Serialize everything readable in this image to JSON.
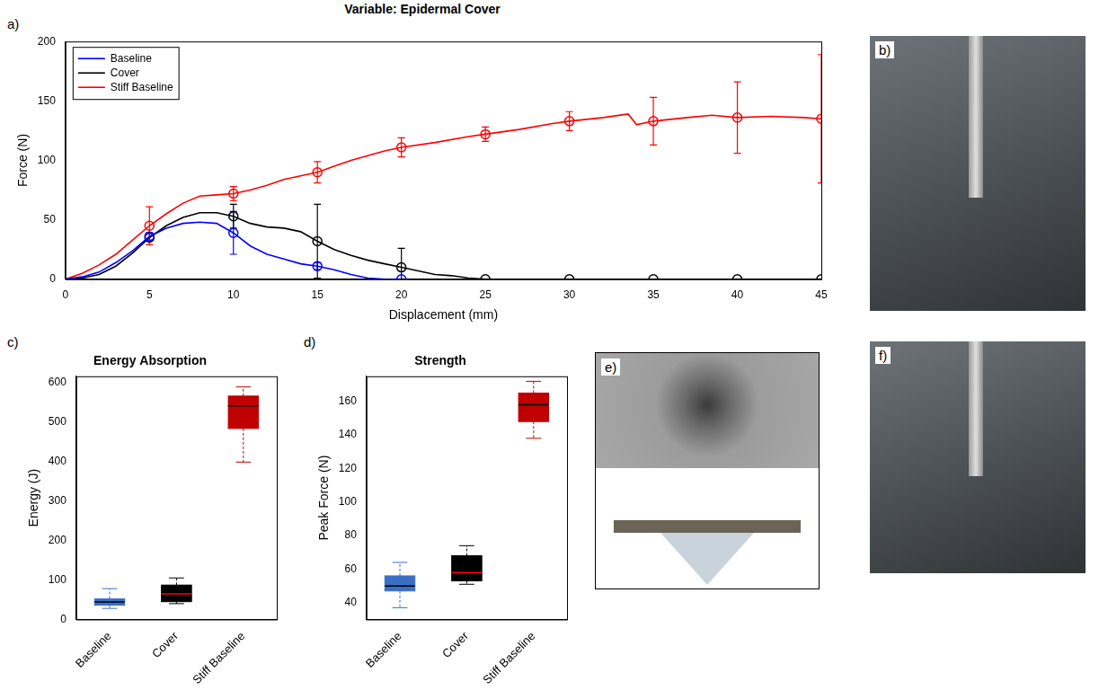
{
  "title": "Variable: Epidermal Cover",
  "chart_data": [
    {
      "panel": "a)",
      "type": "line",
      "x_label": "Displacement (mm)",
      "y_label": "Force (N)",
      "xlim": [
        0,
        45
      ],
      "xticks": [
        0,
        5,
        10,
        15,
        20,
        25,
        30,
        35,
        40,
        45
      ],
      "ylim": [
        0,
        200
      ],
      "yticks": [
        0,
        50,
        100,
        150,
        200
      ],
      "grid": false,
      "legend": "upper left",
      "series": [
        {
          "name": "Baseline",
          "color": "#0000ff",
          "marker": "circle",
          "x": [
            0,
            1,
            2,
            3,
            4,
            5,
            6,
            7,
            8,
            9,
            10,
            11,
            12,
            13,
            14,
            15,
            16,
            17,
            18,
            19,
            20
          ],
          "values": [
            0,
            2,
            6,
            14,
            24,
            36,
            43,
            47,
            48,
            47,
            39,
            28,
            21,
            17,
            13,
            11,
            8,
            4,
            1,
            0,
            0
          ],
          "error_bars": {
            "x": [
              5,
              10,
              15,
              20
            ],
            "y": [
              36,
              39,
              11,
              0
            ],
            "err": [
              3,
              18,
              3,
              0
            ]
          }
        },
        {
          "name": "Cover",
          "color": "#000000",
          "marker": "circle",
          "x": [
            0,
            1,
            2,
            3,
            4,
            5,
            6,
            7,
            8,
            9,
            10,
            11,
            12,
            13,
            14,
            15,
            16,
            17,
            18,
            19,
            20,
            21,
            22,
            23,
            24,
            25,
            30,
            35,
            40,
            45
          ],
          "values": [
            0,
            1,
            4,
            11,
            22,
            35,
            45,
            52,
            56,
            56,
            53,
            47,
            44,
            43,
            40,
            32,
            25,
            20,
            16,
            13,
            10,
            7,
            4,
            3,
            1,
            0,
            0,
            0,
            0,
            0
          ],
          "error_bars": {
            "x": [
              5,
              10,
              15,
              20,
              25,
              30,
              35,
              40,
              45
            ],
            "y": [
              35,
              53,
              32,
              10,
              0,
              0,
              0,
              0,
              0
            ],
            "err": [
              0,
              10,
              31,
              16,
              0,
              0,
              0,
              0,
              0
            ]
          }
        },
        {
          "name": "Stiff Baseline",
          "color": "#ff0000",
          "marker": "circle",
          "x": [
            0,
            1,
            2,
            3,
            4,
            5,
            6,
            7,
            8,
            9,
            10,
            11,
            12,
            13,
            14,
            15,
            16,
            17,
            18,
            19,
            20,
            22,
            24,
            25,
            27,
            29,
            30,
            32,
            33.5,
            34,
            35,
            37,
            38.5,
            40,
            42,
            44,
            45
          ],
          "values": [
            0,
            5,
            12,
            21,
            33,
            45,
            55,
            64,
            70,
            71,
            72,
            75,
            79,
            84,
            87,
            90,
            95,
            100,
            104,
            108,
            111,
            115,
            120,
            122,
            126,
            131,
            133,
            136,
            139,
            130,
            133,
            136,
            138,
            136,
            137,
            136,
            135
          ],
          "error_bars": {
            "x": [
              5,
              10,
              15,
              20,
              25,
              30,
              35,
              40,
              45
            ],
            "y": [
              45,
              72,
              90,
              111,
              122,
              133,
              133,
              136,
              135
            ],
            "err": [
              16,
              6,
              9,
              8,
              6,
              8,
              20,
              30,
              54
            ]
          }
        }
      ]
    },
    {
      "panel": "c)",
      "type": "box",
      "title": "Energy Absorption",
      "y_label": "Energy (J)",
      "categories": [
        "Baseline",
        "Cover",
        "Stiff Baseline"
      ],
      "colors": [
        "#3b6fc6",
        "#000000",
        "#c00000"
      ],
      "stats": [
        {
          "min": 28,
          "q1": 36,
          "median": 44,
          "q3": 52,
          "max": 78
        },
        {
          "min": 40,
          "q1": 45,
          "median": 65,
          "q3": 87,
          "max": 105
        },
        {
          "min": 398,
          "q1": 483,
          "median": 540,
          "q3": 565,
          "max": 588
        }
      ],
      "ylim": [
        0,
        615
      ],
      "yticks": [
        0,
        100,
        200,
        300,
        400,
        500,
        600
      ],
      "grid": false
    },
    {
      "panel": "d)",
      "type": "box",
      "title": "Strength",
      "y_label": "Peak Force (N)",
      "categories": [
        "Baseline",
        "Cover",
        "Stiff Baseline"
      ],
      "colors": [
        "#3b6fc6",
        "#000000",
        "#c00000"
      ],
      "stats": [
        {
          "min": 37,
          "q1": 47,
          "median": 50,
          "q3": 56,
          "max": 64
        },
        {
          "min": 51,
          "q1": 53,
          "median": 58,
          "q3": 68,
          "max": 74
        },
        {
          "min": 138,
          "q1": 148,
          "median": 158,
          "q3": 165,
          "max": 172
        }
      ],
      "ylim": [
        30,
        175
      ],
      "yticks": [
        40,
        60,
        80,
        100,
        120,
        140,
        160
      ],
      "grid": false
    }
  ],
  "images": [
    {
      "label": "b)"
    },
    {
      "label": "e)"
    },
    {
      "label": "f)"
    }
  ]
}
